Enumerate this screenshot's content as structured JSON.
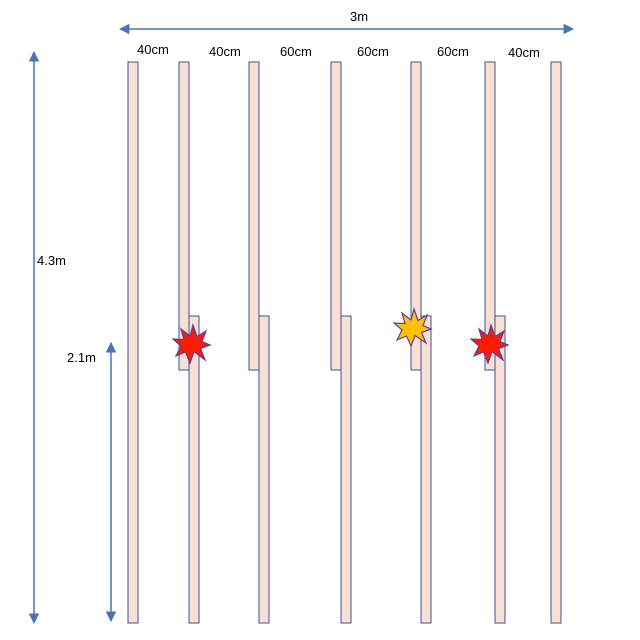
{
  "dimensions": {
    "width_label": "3m",
    "height_label": "4.3m",
    "lower_height_label": "2.1m",
    "spacing_labels": [
      "40cm",
      "40cm",
      "60cm",
      "60cm",
      "60cm",
      "40cm"
    ]
  },
  "colors": {
    "panel_fill": "#f9e0d4",
    "panel_stroke": "#3f4f99",
    "arrow": "#4b74b6",
    "burst_red": "#ff1a00",
    "burst_yellow": "#ffc000",
    "burst_stroke": "#5b3f9a"
  },
  "markers": [
    {
      "name": "red-burst-1",
      "type": "red"
    },
    {
      "name": "yellow-burst",
      "type": "yellow"
    },
    {
      "name": "red-burst-2",
      "type": "red"
    }
  ]
}
